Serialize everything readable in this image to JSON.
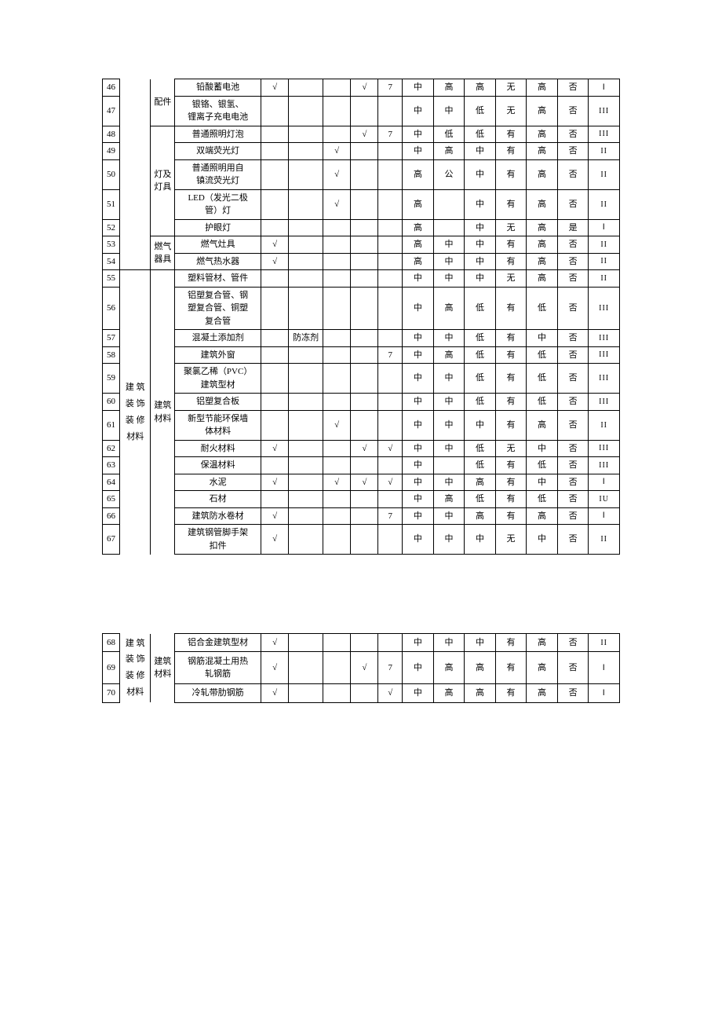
{
  "rows_a": [
    {
      "idx": "46",
      "name": "铅酸蓄电池",
      "c1": "√",
      "c2": "",
      "c3": "",
      "c4": "√",
      "c5": "7",
      "v": [
        "中",
        "高",
        "高",
        "无",
        "高",
        "否",
        "Ⅰ"
      ]
    },
    {
      "idx": "47",
      "name": "银铬、银氢、\n锂离子充电电池",
      "c1": "",
      "c2": "",
      "c3": "",
      "c4": "",
      "c5": "",
      "v": [
        "中",
        "中",
        "低",
        "无",
        "高",
        "否",
        "III"
      ]
    },
    {
      "idx": "48",
      "name": "普通照明灯泡",
      "c1": "",
      "c2": "",
      "c3": "",
      "c4": "√",
      "c5": "7",
      "v": [
        "中",
        "低",
        "低",
        "有",
        "高",
        "否",
        "III"
      ]
    },
    {
      "idx": "49",
      "name": "双端荧光灯",
      "c1": "",
      "c2": "",
      "c3": "√",
      "c4": "",
      "c5": "",
      "v": [
        "中",
        "高",
        "中",
        "有",
        "高",
        "否",
        "II"
      ]
    },
    {
      "idx": "50",
      "name": "普通照明用自\n镇流荧光灯",
      "c1": "",
      "c2": "",
      "c3": "√",
      "c4": "",
      "c5": "",
      "v": [
        "高",
        "公",
        "中",
        "有",
        "高",
        "否",
        "II"
      ]
    },
    {
      "idx": "51",
      "name": "LED（发光二极\n管）灯",
      "c1": "",
      "c2": "",
      "c3": "√",
      "c4": "",
      "c5": "",
      "v": [
        "高",
        "",
        "中",
        "有",
        "高",
        "否",
        "II"
      ]
    },
    {
      "idx": "52",
      "name": "护眼灯",
      "c1": "",
      "c2": "",
      "c3": "",
      "c4": "",
      "c5": "",
      "v": [
        "高",
        "",
        "中",
        "无",
        "高",
        "是",
        "Ⅰ"
      ]
    },
    {
      "idx": "53",
      "name": "燃气灶具",
      "c1": "√",
      "c2": "",
      "c3": "",
      "c4": "",
      "c5": "",
      "v": [
        "高",
        "中",
        "中",
        "有",
        "高",
        "否",
        "II"
      ]
    },
    {
      "idx": "54",
      "name": "燃气热水器",
      "c1": "√",
      "c2": "",
      "c3": "",
      "c4": "",
      "c5": "",
      "v": [
        "高",
        "中",
        "中",
        "有",
        "高",
        "否",
        "II"
      ]
    },
    {
      "idx": "55",
      "name": "塑料管材、管件",
      "c1": "",
      "c2": "",
      "c3": "",
      "c4": "",
      "c5": "",
      "v": [
        "中",
        "中",
        "中",
        "无",
        "高",
        "否",
        "II"
      ]
    },
    {
      "idx": "56",
      "name": "铝塑复合管、钢\n塑复合管、铜塑\n复合管",
      "c1": "",
      "c2": "",
      "c3": "",
      "c4": "",
      "c5": "",
      "v": [
        "中",
        "高",
        "低",
        "有",
        "低",
        "否",
        "III"
      ]
    },
    {
      "idx": "57",
      "name": "混凝土添加剂",
      "c1": "",
      "c2": "防冻剂",
      "c3": "",
      "c4": "",
      "c5": "",
      "v": [
        "中",
        "中",
        "低",
        "有",
        "中",
        "否",
        "III"
      ]
    },
    {
      "idx": "58",
      "name": "建筑外窗",
      "c1": "",
      "c2": "",
      "c3": "",
      "c4": "",
      "c5": "7",
      "v": [
        "中",
        "高",
        "低",
        "有",
        "低",
        "否",
        "III"
      ]
    },
    {
      "idx": "59",
      "name": "聚氯乙稀（PVC）\n建筑型材",
      "c1": "",
      "c2": "",
      "c3": "",
      "c4": "",
      "c5": "",
      "v": [
        "中",
        "中",
        "低",
        "有",
        "低",
        "否",
        "III"
      ]
    },
    {
      "idx": "60",
      "name": "铝塑复合板",
      "c1": "",
      "c2": "",
      "c3": "",
      "c4": "",
      "c5": "",
      "v": [
        "中",
        "中",
        "低",
        "有",
        "低",
        "否",
        "III"
      ]
    },
    {
      "idx": "61",
      "name": "新型节能环保墙\n体材料",
      "c1": "",
      "c2": "",
      "c3": "√",
      "c4": "",
      "c5": "",
      "v": [
        "中",
        "中",
        "中",
        "有",
        "高",
        "否",
        "II"
      ]
    },
    {
      "idx": "62",
      "name": "耐火材料",
      "c1": "√",
      "c2": "",
      "c3": "",
      "c4": "√",
      "c5": "√",
      "v": [
        "中",
        "中",
        "低",
        "无",
        "中",
        "否",
        "III"
      ]
    },
    {
      "idx": "63",
      "name": "保温材料",
      "c1": "",
      "c2": "",
      "c3": "",
      "c4": "",
      "c5": "",
      "v": [
        "中",
        "",
        "低",
        "有",
        "低",
        "否",
        "III"
      ]
    },
    {
      "idx": "64",
      "name": "水泥",
      "c1": "√",
      "c2": "",
      "c3": "√",
      "c4": "√",
      "c5": "√",
      "v": [
        "中",
        "中",
        "高",
        "有",
        "中",
        "否",
        "Ⅰ"
      ]
    },
    {
      "idx": "65",
      "name": "石材",
      "c1": "",
      "c2": "",
      "c3": "",
      "c4": "",
      "c5": "",
      "v": [
        "中",
        "高",
        "低",
        "有",
        "低",
        "否",
        "IU"
      ]
    },
    {
      "idx": "66",
      "name": "建筑防水卷材",
      "c1": "√",
      "c2": "",
      "c3": "",
      "c4": "",
      "c5": "7",
      "v": [
        "中",
        "中",
        "高",
        "有",
        "高",
        "否",
        "Ⅰ"
      ]
    },
    {
      "idx": "67",
      "name": "建筑钢管脚手架\n扣件",
      "c1": "√",
      "c2": "",
      "c3": "",
      "c4": "",
      "c5": "",
      "v": [
        "中",
        "中",
        "中",
        "无",
        "中",
        "否",
        "II"
      ]
    }
  ],
  "rows_b": [
    {
      "idx": "68",
      "name": "铝合金建筑型材",
      "c1": "√",
      "c2": "",
      "c3": "",
      "c4": "",
      "c5": "",
      "v": [
        "中",
        "中",
        "中",
        "有",
        "高",
        "否",
        "II"
      ]
    },
    {
      "idx": "69",
      "name": "钢筋混凝土用热\n轧钢筋",
      "c1": "√",
      "c2": "",
      "c3": "",
      "c4": "√",
      "c5": "7",
      "v": [
        "中",
        "高",
        "高",
        "有",
        "高",
        "否",
        "Ⅰ"
      ]
    },
    {
      "idx": "70",
      "name": "冷轧带肋钢筋",
      "c1": "√",
      "c2": "",
      "c3": "",
      "c4": "",
      "c5": "√",
      "v": [
        "中",
        "高",
        "高",
        "有",
        "高",
        "否",
        "Ⅰ"
      ]
    }
  ],
  "cat1_a": "建 筑\n装 饰\n装 修\n材料",
  "cat1_b": "建 筑\n装 饰\n装 修\n材料",
  "cat2_peijian": "配件",
  "cat2_deng": "灯及\n灯具",
  "cat2_ranqi": "燃气\n器具",
  "cat2_jianzhu": "建筑\n材料"
}
